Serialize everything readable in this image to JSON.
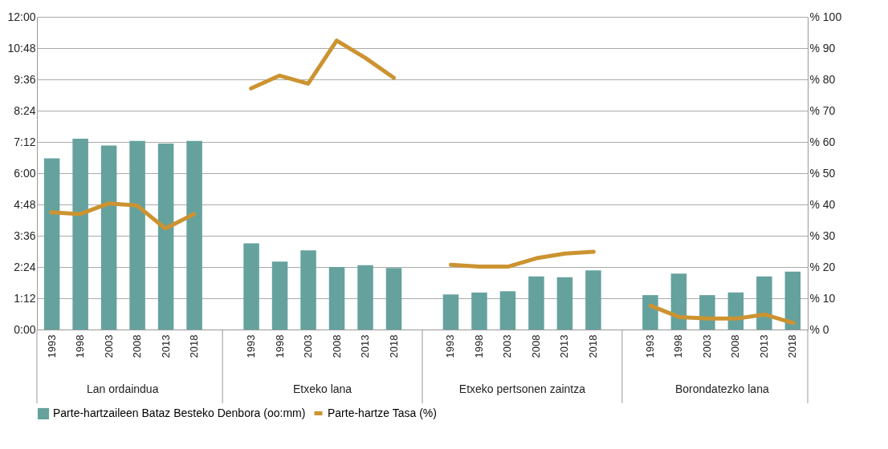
{
  "chart_data": {
    "type": "bar",
    "categories": [
      "1993",
      "1998",
      "2003",
      "2008",
      "2013",
      "2018",
      null,
      "1993",
      "1998",
      "2003",
      "2008",
      "2013",
      "2018",
      null,
      "1993",
      "1998",
      "2003",
      "2008",
      "2013",
      "2018",
      null,
      "1993",
      "1998",
      "2003",
      "2008",
      "2013",
      "2018"
    ],
    "annotations": [
      "Lan ordaindua",
      "Etxeko lana",
      "Etxeko pertsonen zaintza",
      "Borondatezko lana"
    ],
    "series": [
      {
        "name": "Parte-hartzaileen Bataz Besteko Denbora (oo:mm)",
        "type": "bar",
        "color": "#65a29e",
        "values": [
          6.57,
          7.32,
          7.06,
          7.24,
          7.14,
          7.24,
          null,
          3.31,
          2.61,
          3.04,
          2.4,
          2.47,
          2.36,
          null,
          1.35,
          1.42,
          1.47,
          2.04,
          2.01,
          2.27,
          null,
          1.32,
          2.15,
          1.32,
          1.42,
          2.04,
          2.22
        ]
      },
      {
        "name": "Parte-hartze Tasa (%)",
        "type": "line",
        "axis": "y2",
        "color": "#cc9331",
        "values": [
          37.5,
          36.9,
          40.3,
          39.7,
          32.3,
          36.9,
          null,
          77.1,
          81.2,
          78.6,
          92.4,
          86.9,
          80.5,
          null,
          20.7,
          20.1,
          20.1,
          22.8,
          24.3,
          24.9,
          null,
          7.6,
          4.0,
          3.5,
          3.5,
          4.8,
          2.1
        ]
      }
    ],
    "ylim": [
      0,
      12
    ],
    "yticks": [
      {
        "value": 0,
        "label": "0:00"
      },
      {
        "value": 1.2,
        "label": "1:12"
      },
      {
        "value": 2.4,
        "label": "2:24"
      },
      {
        "value": 3.6,
        "label": "3:36"
      },
      {
        "value": 4.8,
        "label": "4:48"
      },
      {
        "value": 6,
        "label": "6:00"
      },
      {
        "value": 7.2,
        "label": "7:12"
      },
      {
        "value": 8.4,
        "label": "8:24"
      },
      {
        "value": 9.6,
        "label": "9:36"
      },
      {
        "value": 10.8,
        "label": "10:48"
      },
      {
        "value": 12,
        "label": "12:00"
      }
    ],
    "y2lim": [
      0,
      100
    ],
    "y2ticks": [
      {
        "value": 0,
        "label": "% 0"
      },
      {
        "value": 10,
        "label": "% 10"
      },
      {
        "value": 20,
        "label": "% 20"
      },
      {
        "value": 30,
        "label": "% 30"
      },
      {
        "value": 40,
        "label": "% 40"
      },
      {
        "value": 50,
        "label": "% 50"
      },
      {
        "value": 60,
        "label": "% 60"
      },
      {
        "value": 70,
        "label": "% 70"
      },
      {
        "value": 80,
        "label": "% 80"
      },
      {
        "value": 90,
        "label": "% 90"
      },
      {
        "value": 100,
        "label": "% 100"
      }
    ],
    "grid": "y",
    "legend": "bottom",
    "line_style": "solid",
    "marker": "none"
  }
}
